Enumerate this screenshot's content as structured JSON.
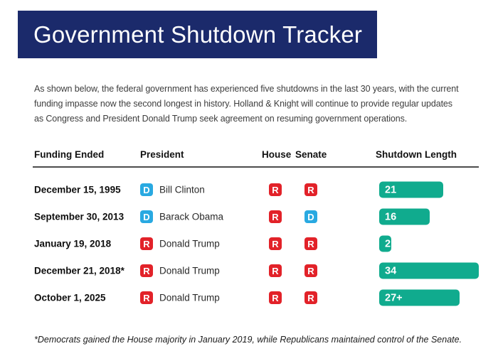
{
  "banner": {
    "title": "Government Shutdown Tracker"
  },
  "intro": "As shown below, the federal government has experienced five shutdowns in the last 30 years, with the current funding impasse now the second longest in history. Holland & Knight will continue to provide regular updates as Congress and President Donald Trump seek agreement on resuming government operations.",
  "table": {
    "headers": {
      "funding_ended": "Funding Ended",
      "president": "President",
      "house": "House",
      "senate": "Senate",
      "shutdown_length": "Shutdown Length"
    },
    "rows": [
      {
        "funding_ended": "December 15, 1995",
        "president": {
          "party": "D",
          "name": "Bill Clinton"
        },
        "house": "R",
        "senate": "R",
        "shutdown": {
          "label": "21",
          "days": 21
        }
      },
      {
        "funding_ended": "September 30, 2013",
        "president": {
          "party": "D",
          "name": "Barack Obama"
        },
        "house": "R",
        "senate": "D",
        "shutdown": {
          "label": "16",
          "days": 16
        }
      },
      {
        "funding_ended": "January 19, 2018",
        "president": {
          "party": "R",
          "name": "Donald Trump"
        },
        "house": "R",
        "senate": "R",
        "shutdown": {
          "label": "2",
          "days": 2
        }
      },
      {
        "funding_ended": "December 21, 2018*",
        "president": {
          "party": "R",
          "name": "Donald Trump"
        },
        "house": "R",
        "senate": "R",
        "shutdown": {
          "label": "34",
          "days": 34
        }
      },
      {
        "funding_ended": "October 1, 2025",
        "president": {
          "party": "R",
          "name": "Donald Trump"
        },
        "house": "R",
        "senate": "R",
        "shutdown": {
          "label": "27+",
          "days": 27
        }
      }
    ]
  },
  "footnote": "*Democrats gained the House majority in January 2019, while Republicans maintained control of the Senate.",
  "colors": {
    "navy": "#1b2a6b",
    "democrat_blue": "#29a9e1",
    "republican_red": "#e22229",
    "bar_teal": "#10ab8e"
  },
  "chart_data": {
    "type": "bar",
    "orientation": "horizontal",
    "title": "Government Shutdown Tracker",
    "series_label": "Shutdown Length (days)",
    "categories": [
      "December 15, 1995",
      "September 30, 2013",
      "January 19, 2018",
      "December 21, 2018*",
      "October 1, 2025"
    ],
    "values": [
      21,
      16,
      2,
      34,
      27
    ],
    "value_labels": [
      "21",
      "16",
      "2",
      "34",
      "27+"
    ],
    "bar_color": "#10ab8e",
    "legend": false,
    "grid": false
  }
}
